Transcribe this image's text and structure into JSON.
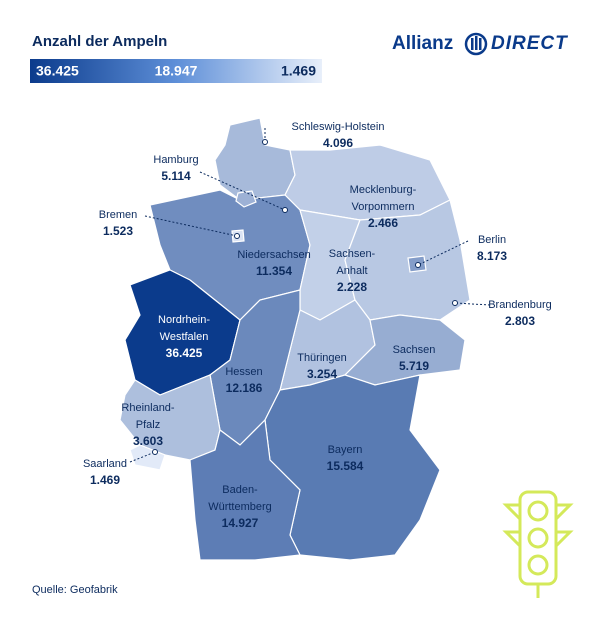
{
  "title": "Anzahl der Ampeln",
  "logo": {
    "brand": "Allianz",
    "product": "DIRECT"
  },
  "legend": {
    "stops": [
      {
        "value": 36425,
        "label": "36.425"
      },
      {
        "value": 18947,
        "label": "18.947"
      },
      {
        "value": 1469,
        "label": "1.469"
      }
    ]
  },
  "regions": [
    {
      "name": [
        "Schleswig-Holstein"
      ],
      "value": 4096,
      "value_label": "4.096"
    },
    {
      "name": [
        "Hamburg"
      ],
      "value": 5114,
      "value_label": "5.114"
    },
    {
      "name": [
        "Mecklenburg-",
        "Vorpommern"
      ],
      "value": 2466,
      "value_label": "2.466"
    },
    {
      "name": [
        "Bremen"
      ],
      "value": 1523,
      "value_label": "1.523"
    },
    {
      "name": [
        "Berlin"
      ],
      "value": 8173,
      "value_label": "8.173"
    },
    {
      "name": [
        "Niedersachsen"
      ],
      "value": 11354,
      "value_label": "11.354"
    },
    {
      "name": [
        "Sachsen-",
        "Anhalt"
      ],
      "value": 2228,
      "value_label": "2.228"
    },
    {
      "name": [
        "Brandenburg"
      ],
      "value": 2803,
      "value_label": "2.803"
    },
    {
      "name": [
        "Nordrhein-",
        "Westfalen"
      ],
      "value": 36425,
      "value_label": "36.425"
    },
    {
      "name": [
        "Thüringen"
      ],
      "value": 3254,
      "value_label": "3.254"
    },
    {
      "name": [
        "Sachsen"
      ],
      "value": 5719,
      "value_label": "5.719"
    },
    {
      "name": [
        "Hessen"
      ],
      "value": 12186,
      "value_label": "12.186"
    },
    {
      "name": [
        "Rheinland-",
        "Pfalz"
      ],
      "value": 3603,
      "value_label": "3.603"
    },
    {
      "name": [
        "Saarland"
      ],
      "value": 1469,
      "value_label": "1.469"
    },
    {
      "name": [
        "Bayern"
      ],
      "value": 15584,
      "value_label": "15.584"
    },
    {
      "name": [
        "Baden-",
        "Württemberg"
      ],
      "value": 14927,
      "value_label": "14.927"
    }
  ],
  "source": "Quelle: Geofabrik"
}
